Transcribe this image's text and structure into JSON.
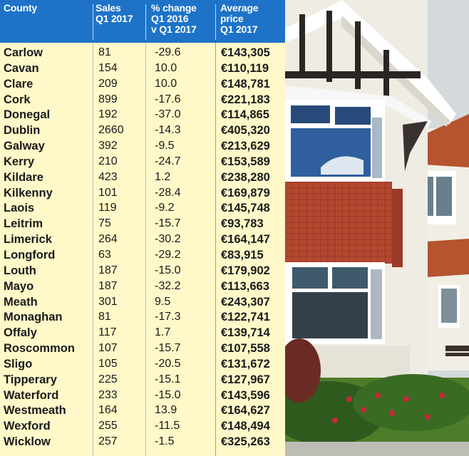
{
  "table": {
    "headers": {
      "county": "County",
      "sales": "Sales\nQ1 2017",
      "change": "% change\nQ1 2016\nv Q1 2017",
      "price": "Average\nprice\nQ1 2017"
    },
    "rows": [
      {
        "county": "Carlow",
        "sales": "81",
        "change": "-29.6",
        "price": "€143,305"
      },
      {
        "county": "Cavan",
        "sales": "154",
        "change": "10.0",
        "price": "€110,119"
      },
      {
        "county": "Clare",
        "sales": "209",
        "change": "10.0",
        "price": "€148,781"
      },
      {
        "county": "Cork",
        "sales": "899",
        "change": "-17.6",
        "price": "€221,183"
      },
      {
        "county": "Donegal",
        "sales": "192",
        "change": "-37.0",
        "price": "€114,865"
      },
      {
        "county": "Dublin",
        "sales": "2660",
        "change": "-14.3",
        "price": "€405,320"
      },
      {
        "county": "Galway",
        "sales": "392",
        "change": "-9.5",
        "price": "€213,629"
      },
      {
        "county": "Kerry",
        "sales": "210",
        "change": "-24.7",
        "price": "€153,589"
      },
      {
        "county": "Kildare",
        "sales": "423",
        "change": "1.2",
        "price": "€238,280"
      },
      {
        "county": "Kilkenny",
        "sales": "101",
        "change": "-28.4",
        "price": "€169,879"
      },
      {
        "county": "Laois",
        "sales": "119",
        "change": "-9.2",
        "price": "€145,748"
      },
      {
        "county": "Leitrim",
        "sales": "75",
        "change": "-15.7",
        "price": "€93,783"
      },
      {
        "county": "Limerick",
        "sales": "264",
        "change": "-30.2",
        "price": "€164,147"
      },
      {
        "county": "Longford",
        "sales": "63",
        "change": "-29.2",
        "price": "€83,915"
      },
      {
        "county": "Louth",
        "sales": "187",
        "change": "-15.0",
        "price": "€179,902"
      },
      {
        "county": "Mayo",
        "sales": "187",
        "change": "-32.2",
        "price": "€113,663"
      },
      {
        "county": "Meath",
        "sales": "301",
        "change": "9.5",
        "price": "€243,307"
      },
      {
        "county": "Monaghan",
        "sales": "81",
        "change": "-17.3",
        "price": "€122,741"
      },
      {
        "county": "Offaly",
        "sales": "117",
        "change": "1.7",
        "price": "€139,714"
      },
      {
        "county": "Roscommon",
        "sales": "107",
        "change": "-15.7",
        "price": "€107,558"
      },
      {
        "county": "Sligo",
        "sales": "105",
        "change": "-20.5",
        "price": "€131,672"
      },
      {
        "county": "Tipperary",
        "sales": "225",
        "change": "-15.1",
        "price": "€127,967"
      },
      {
        "county": "Waterford",
        "sales": "233",
        "change": "-15.0",
        "price": "€143,596"
      },
      {
        "county": "Westmeath",
        "sales": "164",
        "change": "13.9",
        "price": "€164,627"
      },
      {
        "county": "Wexford",
        "sales": "255",
        "change": "-11.5",
        "price": "€148,494"
      },
      {
        "county": "Wicklow",
        "sales": "257",
        "change": "-1.5",
        "price": "€325,263"
      }
    ]
  },
  "colors": {
    "header_bg": "#1e73c8",
    "table_bg": "#fff8c9"
  },
  "photo": {
    "subject": "house-photo"
  }
}
